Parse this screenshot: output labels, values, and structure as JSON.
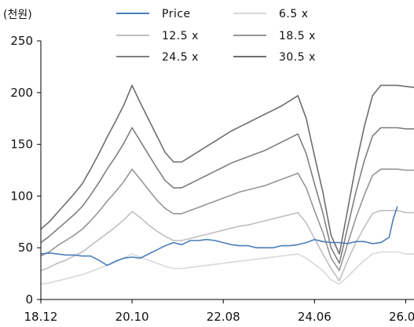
{
  "chart_data": {
    "type": "line",
    "title": "",
    "ylabel": "(천원)",
    "xlabel": "",
    "x_ticks": [
      "18.12",
      "20.10",
      "22.08",
      "24.06",
      "26.04"
    ],
    "y_ticks": [
      "0",
      "50",
      "100",
      "150",
      "200",
      "250"
    ],
    "ylim": [
      0,
      250
    ],
    "xlim": [
      "2018-12",
      "2026-06"
    ],
    "grid": false,
    "legend": "top",
    "x": [
      "2018-12",
      "2019-02",
      "2019-04",
      "2019-06",
      "2019-08",
      "2019-10",
      "2019-12",
      "2020-02",
      "2020-04",
      "2020-06",
      "2020-08",
      "2020-10",
      "2020-12",
      "2021-02",
      "2021-04",
      "2021-06",
      "2021-08",
      "2021-10",
      "2021-12",
      "2022-02",
      "2022-04",
      "2022-06",
      "2022-08",
      "2022-10",
      "2022-12",
      "2023-02",
      "2023-04",
      "2023-06",
      "2023-08",
      "2023-10",
      "2023-12",
      "2024-02",
      "2024-04",
      "2024-06",
      "2024-08",
      "2024-10",
      "2024-12",
      "2025-02",
      "2025-04",
      "2025-06",
      "2025-08",
      "2025-10",
      "2025-12",
      "2026-02",
      "2026-04",
      "2026-06"
    ],
    "series": [
      {
        "name": "Price",
        "color": "#4a7ebb",
        "width": 1.6,
        "x": [
          "2018-12",
          "2019-02",
          "2019-04",
          "2019-06",
          "2019-08",
          "2019-10",
          "2019-12",
          "2020-02",
          "2020-04",
          "2020-06",
          "2020-08",
          "2020-10",
          "2020-12",
          "2021-02",
          "2021-04",
          "2021-06",
          "2021-08",
          "2021-10",
          "2021-12",
          "2022-02",
          "2022-04",
          "2022-06",
          "2022-08",
          "2022-10",
          "2022-12",
          "2023-02",
          "2023-04",
          "2023-06",
          "2023-08",
          "2023-10",
          "2023-12",
          "2024-02",
          "2024-04",
          "2024-06",
          "2024-08",
          "2024-10",
          "2024-12",
          "2025-02",
          "2025-04",
          "2025-06",
          "2025-08",
          "2025-10",
          "2025-12",
          "2026-01",
          "2026-02"
        ],
        "values": [
          44,
          45,
          44,
          43,
          43,
          42,
          42,
          38,
          33,
          37,
          40,
          41,
          40,
          44,
          48,
          52,
          55,
          53,
          57,
          57,
          58,
          57,
          55,
          53,
          52,
          52,
          50,
          50,
          50,
          52,
          52,
          53,
          55,
          58,
          56,
          55,
          55,
          54,
          56,
          56,
          54,
          55,
          60,
          78,
          90
        ]
      },
      {
        "name": "6.5 x",
        "color": "#d9d9d9",
        "width": 1.6,
        "values": [
          15,
          16,
          18,
          20,
          22,
          24,
          27,
          30,
          33,
          36,
          40,
          44,
          41,
          38,
          35,
          32,
          30,
          30,
          31,
          32,
          33,
          34,
          35,
          36,
          37,
          38,
          39,
          40,
          41,
          42,
          43,
          44,
          40,
          34,
          28,
          19,
          15,
          22,
          30,
          38,
          44,
          46,
          46,
          46,
          44,
          44
        ]
      },
      {
        "name": "12.5 x",
        "color": "#bfbfbf",
        "width": 1.6,
        "values": [
          28,
          31,
          35,
          38,
          42,
          46,
          52,
          58,
          64,
          70,
          77,
          85,
          79,
          72,
          66,
          61,
          57,
          57,
          59,
          61,
          63,
          65,
          67,
          69,
          71,
          72,
          74,
          76,
          78,
          80,
          82,
          84,
          74,
          59,
          44,
          30,
          18,
          38,
          55,
          70,
          83,
          86,
          86,
          86,
          84,
          84
        ]
      },
      {
        "name": "18.5 x",
        "color": "#969696",
        "width": 1.6,
        "values": [
          42,
          46,
          52,
          57,
          62,
          68,
          76,
          85,
          95,
          104,
          114,
          126,
          116,
          106,
          96,
          88,
          83,
          83,
          86,
          89,
          92,
          95,
          98,
          101,
          104,
          106,
          108,
          110,
          113,
          116,
          119,
          122,
          108,
          86,
          65,
          40,
          28,
          54,
          79,
          101,
          120,
          126,
          126,
          126,
          125,
          125
        ]
      },
      {
        "name": "24.5 x",
        "color": "#7f7f7f",
        "width": 1.6,
        "values": [
          55,
          61,
          68,
          75,
          82,
          90,
          101,
          113,
          126,
          138,
          151,
          166,
          153,
          140,
          127,
          115,
          108,
          108,
          112,
          116,
          120,
          124,
          128,
          132,
          135,
          138,
          141,
          144,
          148,
          152,
          156,
          160,
          141,
          112,
          84,
          50,
          35,
          70,
          104,
          134,
          158,
          166,
          166,
          166,
          165,
          165
        ]
      },
      {
        "name": "30.5 x",
        "color": "#6e6e6e",
        "width": 1.6,
        "values": [
          68,
          75,
          84,
          93,
          102,
          112,
          126,
          141,
          157,
          172,
          188,
          207,
          190,
          174,
          158,
          142,
          133,
          133,
          138,
          143,
          148,
          153,
          158,
          163,
          167,
          171,
          175,
          179,
          183,
          187,
          192,
          197,
          175,
          139,
          104,
          62,
          44,
          87,
          130,
          167,
          197,
          207,
          207,
          207,
          206,
          205
        ]
      }
    ]
  }
}
